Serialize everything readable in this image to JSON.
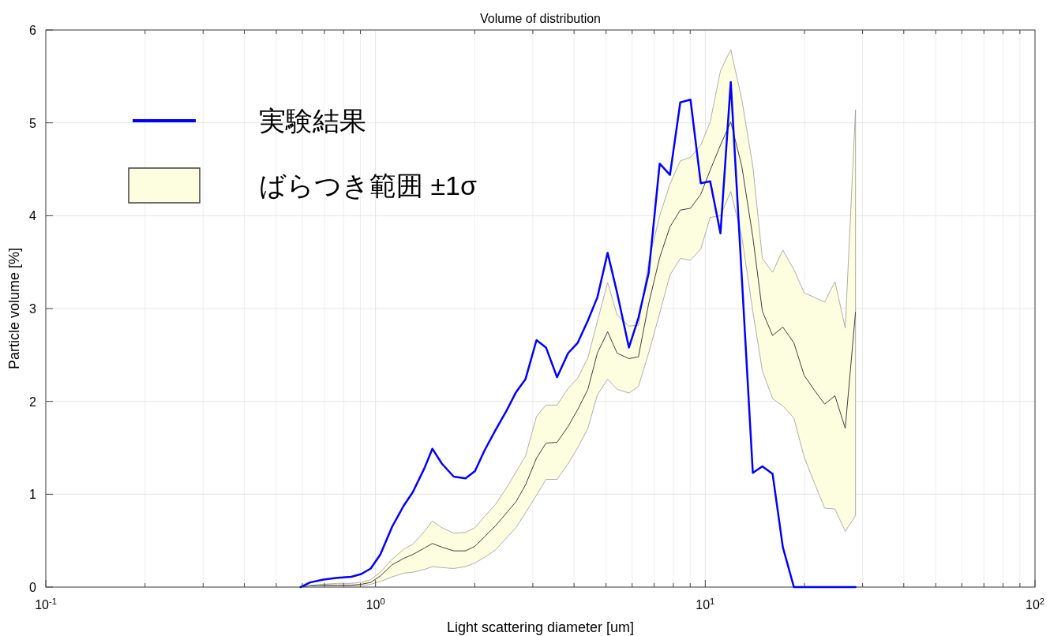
{
  "chart_data": {
    "type": "line",
    "title": "Volume of distribution",
    "xlabel": "Light scattering diameter [um]",
    "ylabel": "Particle volume [%]",
    "x": [
      0.592,
      0.633,
      0.695,
      0.767,
      0.843,
      0.905,
      0.967,
      1.034,
      1.123,
      1.219,
      1.296,
      1.407,
      1.487,
      1.589,
      1.726,
      1.875,
      2.003,
      2.14,
      2.311,
      2.497,
      2.668,
      2.85,
      3.078,
      3.289,
      3.553,
      3.838,
      4.102,
      4.406,
      4.707,
      5.057,
      5.403,
      5.869,
      6.27,
      6.734,
      7.275,
      7.816,
      8.4,
      9.02,
      9.69,
      10.35,
      11.12,
      11.95,
      12.91,
      13.94,
      14.9,
      16.0,
      17.19,
      18.57,
      19.95,
      21.43,
      23.02,
      24.74,
      26.58,
      28.55
    ],
    "series": [
      {
        "name": "実験結果",
        "color": "#0000ff",
        "values": [
          0,
          0.05,
          0.08,
          0.1,
          0.11,
          0.14,
          0.2,
          0.35,
          0.65,
          0.88,
          1.02,
          1.28,
          1.49,
          1.33,
          1.19,
          1.17,
          1.25,
          1.47,
          1.69,
          1.9,
          2.1,
          2.24,
          2.66,
          2.58,
          2.26,
          2.52,
          2.63,
          2.87,
          3.12,
          3.6,
          3.17,
          2.58,
          2.9,
          3.38,
          4.56,
          4.44,
          5.22,
          5.25,
          4.35,
          4.37,
          3.81,
          5.44,
          3.33,
          1.23,
          1.3,
          1.22,
          0.43,
          0,
          0,
          0,
          0,
          0,
          0,
          0
        ]
      },
      {
        "name": "ばらつき範囲 ±1σ",
        "color": "#404040",
        "values": [
          0,
          0.01,
          0.02,
          0.02,
          0.02,
          0.03,
          0.05,
          0.12,
          0.24,
          0.31,
          0.35,
          0.42,
          0.47,
          0.43,
          0.39,
          0.39,
          0.44,
          0.54,
          0.66,
          0.8,
          0.92,
          1.1,
          1.39,
          1.55,
          1.56,
          1.73,
          1.91,
          2.13,
          2.52,
          2.75,
          2.52,
          2.46,
          2.48,
          3.05,
          3.55,
          3.88,
          4.06,
          4.08,
          4.23,
          4.49,
          4.76,
          5.01,
          4.53,
          3.77,
          2.97,
          2.71,
          2.8,
          2.63,
          2.28,
          2.12,
          1.97,
          2.06,
          1.71,
          2.96
        ],
        "upper": [
          0,
          0.02,
          0.03,
          0.04,
          0.04,
          0.05,
          0.08,
          0.16,
          0.3,
          0.41,
          0.46,
          0.6,
          0.71,
          0.64,
          0.58,
          0.59,
          0.64,
          0.76,
          0.89,
          1.07,
          1.24,
          1.41,
          1.84,
          1.96,
          1.96,
          2.14,
          2.25,
          2.47,
          2.86,
          3.28,
          2.93,
          2.81,
          2.82,
          3.5,
          4.0,
          4.34,
          4.59,
          4.63,
          4.76,
          5.01,
          5.56,
          5.79,
          5.25,
          4.53,
          3.54,
          3.39,
          3.63,
          3.42,
          3.17,
          3.12,
          3.07,
          3.29,
          2.79,
          5.14
        ],
        "lower": [
          0,
          0,
          0.01,
          0.01,
          0.01,
          0.01,
          0.03,
          0.06,
          0.11,
          0.15,
          0.16,
          0.19,
          0.22,
          0.21,
          0.2,
          0.22,
          0.26,
          0.32,
          0.4,
          0.53,
          0.64,
          0.8,
          0.99,
          1.16,
          1.16,
          1.33,
          1.5,
          1.71,
          2.07,
          2.24,
          2.13,
          2.09,
          2.16,
          2.52,
          2.95,
          3.36,
          3.54,
          3.52,
          3.64,
          3.98,
          4.0,
          4.26,
          3.77,
          2.97,
          2.33,
          2.03,
          1.95,
          1.82,
          1.4,
          1.12,
          0.85,
          0.84,
          0.6,
          0.77
        ]
      }
    ],
    "log": "x",
    "xlim": [
      0.1,
      100
    ],
    "xticks": [
      {
        "value": 0.1,
        "label": "10$^{-1}$"
      },
      {
        "value": 1,
        "label": "10$^{0}$"
      },
      {
        "value": 10,
        "label": "10$^{1}$"
      },
      {
        "value": 100,
        "label": "10$^{2}$"
      }
    ],
    "ylim": [
      0,
      6
    ],
    "yticks": [
      0,
      1,
      2,
      3,
      4,
      5,
      6
    ],
    "grid": true,
    "legend": "top left",
    "marker": "none",
    "line_style": "solid"
  }
}
